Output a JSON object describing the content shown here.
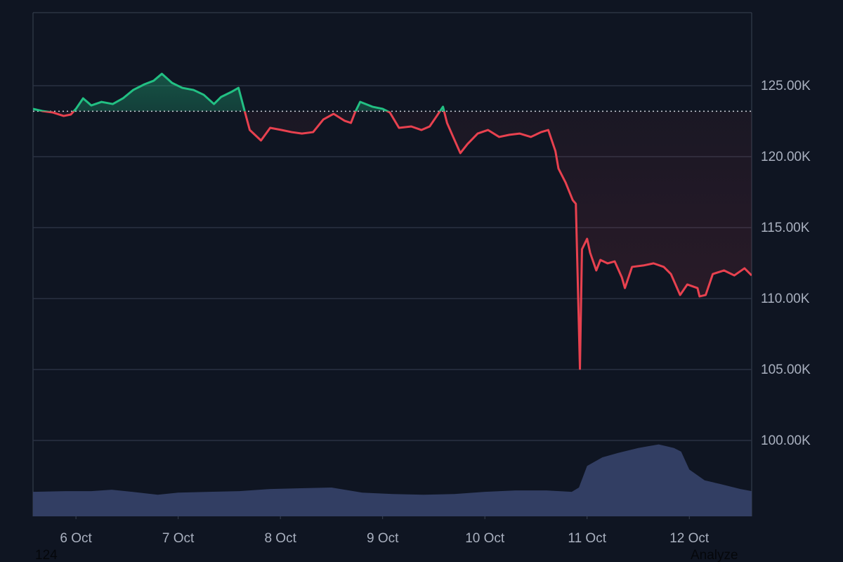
{
  "chart_data": {
    "type": "line",
    "baseline": 123200,
    "up_color": "#22c083",
    "down_color": "#e8414f",
    "x": [
      5.58,
      5.67,
      5.77,
      5.88,
      5.95,
      6.0,
      6.07,
      6.15,
      6.25,
      6.36,
      6.46,
      6.56,
      6.67,
      6.76,
      6.84,
      6.94,
      7.04,
      7.15,
      7.25,
      7.35,
      7.42,
      7.53,
      7.59,
      7.65,
      7.7,
      7.81,
      7.9,
      8.01,
      8.11,
      8.21,
      8.32,
      8.42,
      8.52,
      8.63,
      8.69,
      8.73,
      8.78,
      8.9,
      9.0,
      9.07,
      9.16,
      9.28,
      9.38,
      9.46,
      9.53,
      9.59,
      9.63,
      9.69,
      9.76,
      9.83,
      9.93,
      10.03,
      10.14,
      10.24,
      10.34,
      10.45,
      10.55,
      10.62,
      10.69,
      10.72,
      10.79,
      10.86,
      10.89,
      10.93,
      10.95,
      11.0,
      11.03,
      11.09,
      11.13,
      11.2,
      11.27,
      11.34,
      11.37,
      11.44,
      11.55,
      11.65,
      11.75,
      11.82,
      11.91,
      11.98,
      12.08,
      12.1,
      12.16,
      12.23,
      12.34,
      12.44,
      12.54,
      12.61
    ],
    "values": [
      123370,
      123220,
      123120,
      122870,
      122970,
      123370,
      124110,
      123610,
      123860,
      123710,
      124110,
      124700,
      125100,
      125350,
      125840,
      125200,
      124850,
      124700,
      124360,
      123710,
      124210,
      124600,
      124850,
      123220,
      121880,
      121140,
      122030,
      121880,
      121730,
      121630,
      121730,
      122620,
      123020,
      122520,
      122380,
      123120,
      123860,
      123520,
      123370,
      123120,
      122030,
      122130,
      121880,
      122130,
      122870,
      123520,
      122380,
      121390,
      120250,
      120890,
      121630,
      121880,
      121390,
      121540,
      121630,
      121390,
      121730,
      121880,
      120400,
      119160,
      118170,
      116930,
      116680,
      105050,
      113470,
      114210,
      113220,
      111980,
      112720,
      112480,
      112620,
      111490,
      110740,
      112230,
      112330,
      112480,
      112230,
      111730,
      110250,
      110990,
      110740,
      110150,
      110250,
      111730,
      111980,
      111630,
      112130,
      111630
    ],
    "volume": {
      "color": "#323e63",
      "x": [
        5.58,
        5.9,
        6.15,
        6.35,
        6.55,
        6.8,
        7.0,
        7.3,
        7.6,
        7.9,
        8.2,
        8.5,
        8.8,
        9.1,
        9.4,
        9.7,
        10.0,
        10.3,
        10.6,
        10.85,
        10.92,
        11.0,
        11.15,
        11.3,
        11.5,
        11.7,
        11.85,
        11.92,
        12.0,
        12.15,
        12.3,
        12.5,
        12.61
      ],
      "values": [
        34,
        35,
        35,
        37,
        34,
        30,
        33,
        34,
        35,
        38,
        39,
        40,
        33,
        31,
        30,
        31,
        34,
        36,
        36,
        34,
        40,
        70,
        82,
        88,
        95,
        100,
        95,
        90,
        65,
        50,
        45,
        38,
        35
      ]
    },
    "y2lim": [
      0,
      700
    ],
    "xlim": [
      5.58,
      12.61
    ],
    "xticks": [
      {
        "value": 6,
        "label": "6 Oct"
      },
      {
        "value": 7,
        "label": "7 Oct"
      },
      {
        "value": 8,
        "label": "8 Oct"
      },
      {
        "value": 9,
        "label": "9 Oct"
      },
      {
        "value": 10,
        "label": "10 Oct"
      },
      {
        "value": 11,
        "label": "11 Oct"
      },
      {
        "value": 12,
        "label": "12 Oct"
      }
    ],
    "ylim": [
      94650,
      130150
    ],
    "yticks": [
      {
        "value": 100000,
        "label": "100.00K"
      },
      {
        "value": 105000,
        "label": "105.00K"
      },
      {
        "value": 110000,
        "label": "110.00K"
      },
      {
        "value": 115000,
        "label": "115.00K"
      },
      {
        "value": 120000,
        "label": "120.00K"
      },
      {
        "value": 125000,
        "label": "125.00K"
      }
    ],
    "grid": true
  },
  "footer": {
    "left": "124",
    "right": "Analyze"
  }
}
